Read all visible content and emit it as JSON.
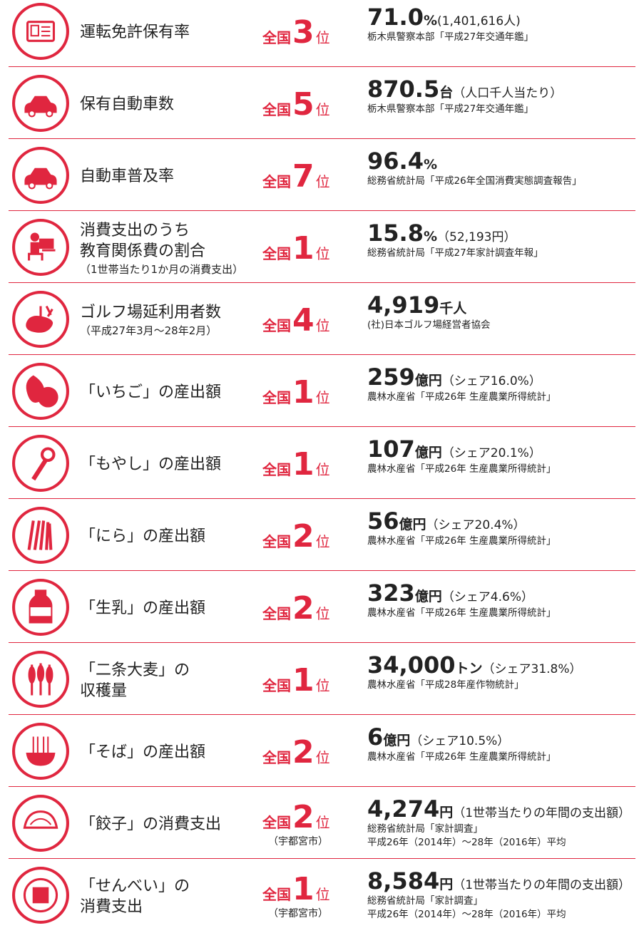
{
  "items": [
    {
      "label": [
        "運転免許保有率"
      ],
      "rank": {
        "prefix": "全国",
        "number": "3",
        "suffix": "位"
      },
      "value": "71.0",
      "unit": "%",
      "extra": "(1,401,616人)",
      "source": [
        "栃木県警察本部「平成27年交通年鑑」"
      ]
    },
    {
      "label": [
        "保有自動車数"
      ],
      "rank": {
        "prefix": "全国",
        "number": "5",
        "suffix": "位"
      },
      "value": "870.5",
      "unit": "台",
      "extra": "（人口千人当たり）",
      "source": [
        "栃木県警察本部「平成27年交通年鑑」"
      ]
    },
    {
      "label": [
        "自動車普及率"
      ],
      "rank": {
        "prefix": "全国",
        "number": "7",
        "suffix": "位"
      },
      "value": "96.4",
      "unit": "%",
      "source": [
        "総務省統計局「平成26年全国消費実態調査報告」"
      ]
    },
    {
      "label": [
        "消費支出のうち",
        "教育関係費の割合"
      ],
      "note": "（1世帯当たり1か月の消費支出）",
      "rank": {
        "prefix": "全国",
        "number": "1",
        "suffix": "位"
      },
      "value": "15.8",
      "unit": "%",
      "extra": "（52,193円）",
      "source": [
        "総務省統計局「平成27年家計調査年報」"
      ]
    },
    {
      "label": [
        "ゴルフ場延利用者数"
      ],
      "note": "（平成27年3月〜28年2月）",
      "rank": {
        "prefix": "全国",
        "number": "4",
        "suffix": "位"
      },
      "value": "4,919",
      "unit": "千人",
      "source": [
        "(社)日本ゴルフ場経営者協会"
      ]
    },
    {
      "label": [
        "「いちご」の産出額"
      ],
      "rank": {
        "prefix": "全国",
        "number": "1",
        "suffix": "位"
      },
      "value": "259",
      "unit": "億円",
      "extra": "（シェア16.0%）",
      "source": [
        "農林水産省「平成26年 生産農業所得統計」"
      ]
    },
    {
      "label": [
        "「もやし」の産出額"
      ],
      "rank": {
        "prefix": "全国",
        "number": "1",
        "suffix": "位"
      },
      "value": "107",
      "unit": "億円",
      "extra": "（シェア20.1%）",
      "source": [
        "農林水産省「平成26年 生産農業所得統計」"
      ]
    },
    {
      "label": [
        "「にら」の産出額"
      ],
      "rank": {
        "prefix": "全国",
        "number": "2",
        "suffix": "位"
      },
      "value": "56",
      "unit": "億円",
      "extra": "（シェア20.4%）",
      "source": [
        "農林水産省「平成26年 生産農業所得統計」"
      ]
    },
    {
      "label": [
        "「生乳」の産出額"
      ],
      "rank": {
        "prefix": "全国",
        "number": "2",
        "suffix": "位"
      },
      "value": "323",
      "unit": "億円",
      "extra": "（シェア4.6%）",
      "source": [
        "農林水産省「平成26年 生産農業所得統計」"
      ]
    },
    {
      "label": [
        "「二条大麦」の",
        "収穫量"
      ],
      "rank": {
        "prefix": "全国",
        "number": "1",
        "suffix": "位"
      },
      "value": "34,000",
      "unit": "トン",
      "extra": "（シェア31.8%）",
      "source": [
        "農林水産省「平成28年産作物統計」"
      ]
    },
    {
      "label": [
        "「そば」の産出額"
      ],
      "rank": {
        "prefix": "全国",
        "number": "2",
        "suffix": "位"
      },
      "value": "6",
      "unit": "億円",
      "extra": "（シェア10.5%）",
      "source": [
        "農林水産省「平成26年 生産農業所得統計」"
      ]
    },
    {
      "label": [
        "「餃子」の消費支出"
      ],
      "rank": {
        "prefix": "全国",
        "number": "2",
        "suffix": "位",
        "note": "（宇都宮市）"
      },
      "value": "4,274",
      "unit": "円",
      "extra": "（1世帯当たりの年間の支出額）",
      "source": [
        "総務省統計局「家計調査」",
        "平成26年（2014年）〜28年（2016年）平均"
      ]
    },
    {
      "label": [
        "「せんべい」の",
        "消費支出"
      ],
      "rank": {
        "prefix": "全国",
        "number": "1",
        "suffix": "位",
        "note": "（宇都宮市）"
      },
      "value": "8,584",
      "unit": "円",
      "extra": "（1世帯当たりの年間の支出額）",
      "source": [
        "総務省統計局「家計調査」",
        "平成26年（2014年）〜28年（2016年）平均"
      ]
    }
  ]
}
